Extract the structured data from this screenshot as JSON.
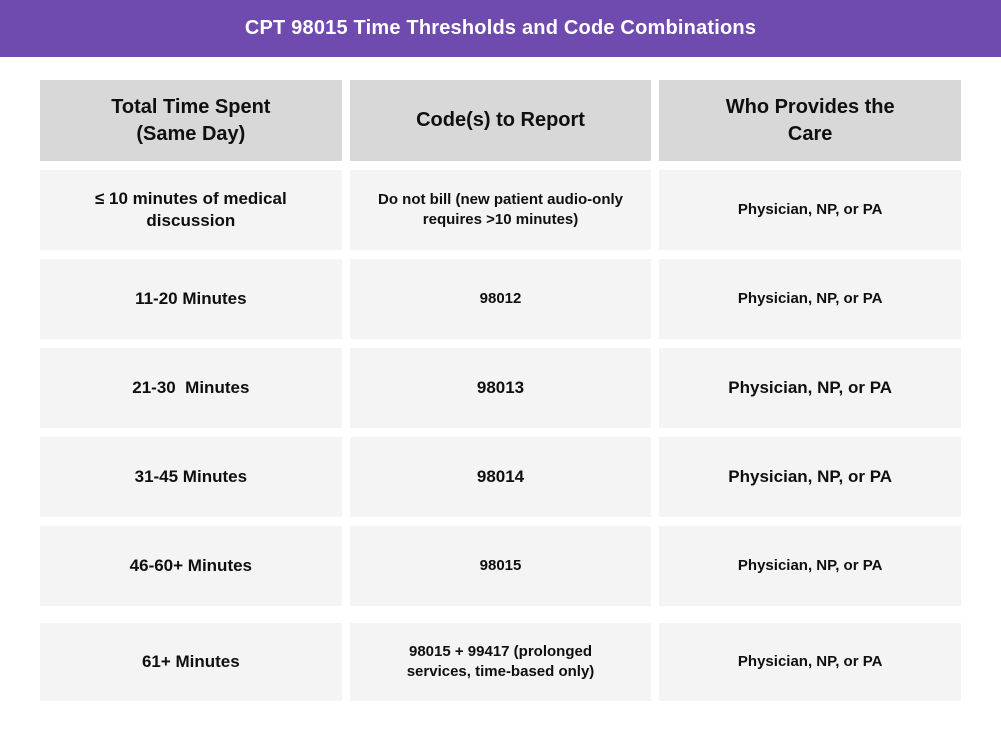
{
  "banner": {
    "title": "CPT 98015 Time Thresholds and Code Combinations"
  },
  "colors": {
    "banner_bg": "#6F4AAF",
    "banner_text": "#FFFFFF",
    "header_cell_bg": "#D8D8D8",
    "data_cell_bg": "#F4F4F4",
    "text": "#0F0F0F",
    "page_bg": "#FFFFFF"
  },
  "chart_data": {
    "type": "table",
    "title": "CPT 98015 Time Thresholds and Code Combinations",
    "columns": [
      "Total Time Spent (Same Day)",
      "Code(s) to Report",
      "Who Provides the Care"
    ],
    "rows": [
      [
        "≤ 10 minutes of medical discussion",
        "Do not bill (new patient audio-only requires >10 minutes)",
        "Physician, NP, or PA"
      ],
      [
        "11-20 Minutes",
        "98012",
        "Physician, NP, or PA"
      ],
      [
        "21-30  Minutes",
        "98013",
        "Physician, NP, or PA"
      ],
      [
        "31-45 Minutes",
        "98014",
        "Physician, NP, or PA"
      ],
      [
        "46-60+ Minutes",
        "98015",
        "Physician, NP, or PA"
      ],
      [
        "61+ Minutes",
        "98015 + 99417 (prolonged services, time-based only)",
        "Physician, NP, or PA"
      ]
    ]
  }
}
